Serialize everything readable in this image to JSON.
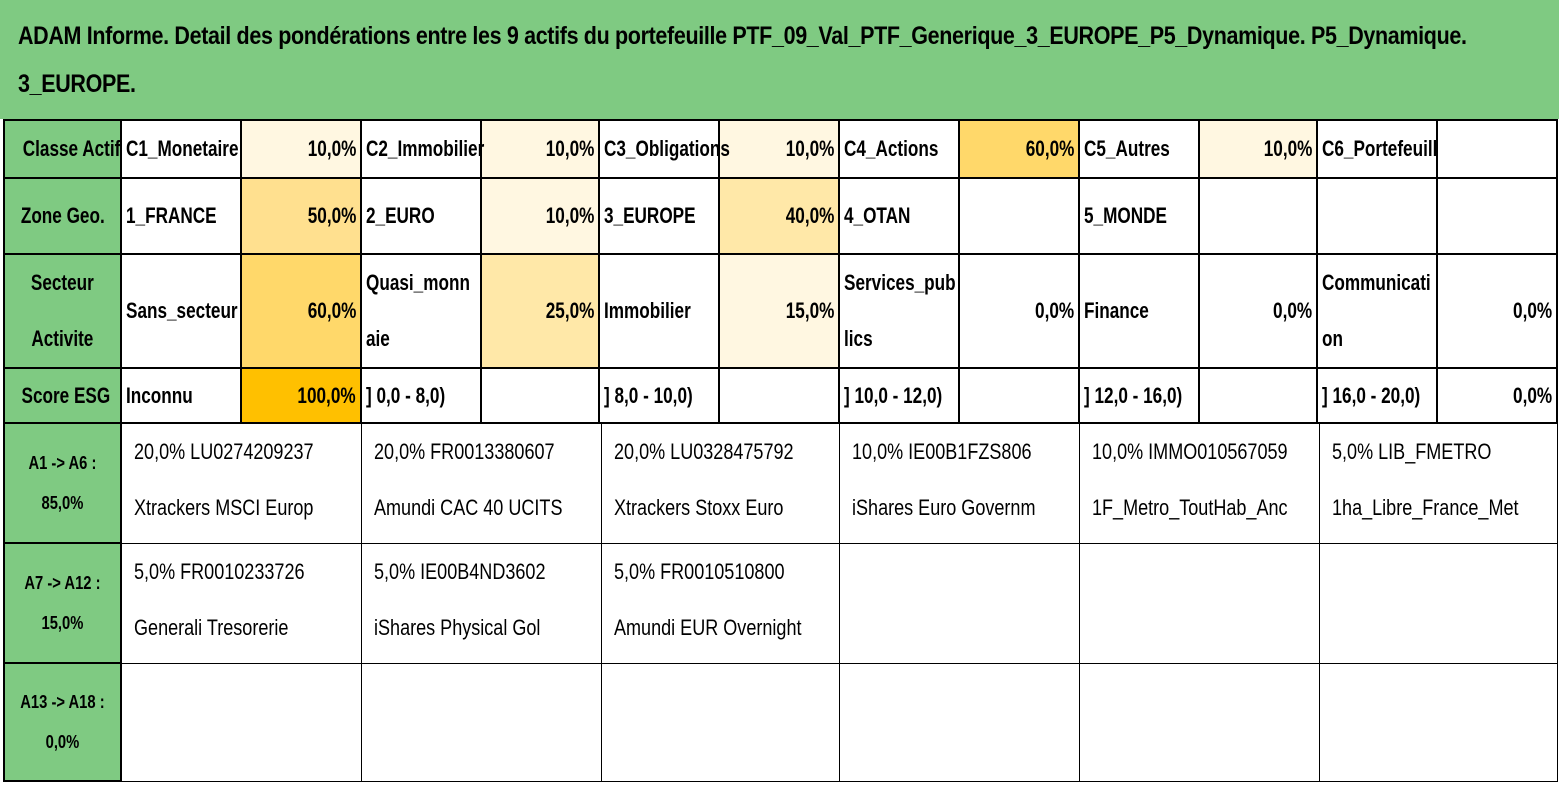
{
  "title": {
    "line1": "ADAM Informe. Detail des pondérations entre les 9 actifs du portefeuille PTF_09_Val_PTF_Generique_3_EUROPE_P5_Dynamique. P5_Dynamique.",
    "line2": "3_EUROPE."
  },
  "rows": {
    "classe": {
      "label": "Classe Actif",
      "cells": [
        {
          "name": "C1_Monetaire",
          "pct": "10,0%"
        },
        {
          "name": "C2_Immobilier",
          "pct": "10,0%"
        },
        {
          "name": "C3_Obligations",
          "pct": "10,0%"
        },
        {
          "name": "C4_Actions",
          "pct": "60,0%"
        },
        {
          "name": "C5_Autres",
          "pct": "10,0%"
        },
        {
          "name": "C6_Portefeuill",
          "pct": ""
        }
      ]
    },
    "zone": {
      "label": "Zone Geo.",
      "cells": [
        {
          "name": "1_FRANCE",
          "pct": "50,0%"
        },
        {
          "name": "2_EURO",
          "pct": "10,0%"
        },
        {
          "name": "3_EUROPE",
          "pct": "40,0%"
        },
        {
          "name": "4_OTAN",
          "pct": ""
        },
        {
          "name": "5_MONDE",
          "pct": ""
        },
        {
          "name": "",
          "pct": ""
        }
      ]
    },
    "secteur": {
      "label_line1": "Secteur",
      "label_line2": "Activite",
      "cells": [
        {
          "name": "Sans_secteur",
          "pct": "60,0%"
        },
        {
          "name": "Quasi_monn aie",
          "pct": "25,0%"
        },
        {
          "name": "Immobilier",
          "pct": "15,0%"
        },
        {
          "name": "Services_pub lics",
          "pct": "0,0%"
        },
        {
          "name": "Finance",
          "pct": "0,0%"
        },
        {
          "name": "Communicati on",
          "pct": "0,0%"
        }
      ]
    },
    "esg": {
      "label": "Score ESG",
      "cells": [
        {
          "name": "Inconnu",
          "pct": "100,0%"
        },
        {
          "name": "] 0,0 - 8,0)",
          "pct": ""
        },
        {
          "name": "] 8,0 - 10,0)",
          "pct": ""
        },
        {
          "name": "] 10,0 - 12,0)",
          "pct": ""
        },
        {
          "name": "] 12,0 - 16,0)",
          "pct": ""
        },
        {
          "name": "] 16,0 - 20,0)",
          "pct": "0,0%"
        }
      ]
    }
  },
  "assets": [
    {
      "label_line1": "A1 -> A6 :",
      "label_line2": "85,0%",
      "items": [
        {
          "line1": "20,0% LU0274209237",
          "line2": "Xtrackers MSCI Europ"
        },
        {
          "line1": "20,0% FR0013380607",
          "line2": "Amundi CAC 40 UCITS"
        },
        {
          "line1": "20,0% LU0328475792",
          "line2": "Xtrackers Stoxx Euro"
        },
        {
          "line1": "10,0% IE00B1FZS806",
          "line2": "iShares Euro Governm"
        },
        {
          "line1": "10,0% IMMO010567059",
          "line2": "1F_Metro_ToutHab_Anc"
        },
        {
          "line1": "5,0% LIB_FMETRO",
          "line2": "1ha_Libre_France_Met"
        }
      ]
    },
    {
      "label_line1": "A7 -> A12 :",
      "label_line2": "15,0%",
      "items": [
        {
          "line1": "5,0% FR0010233726",
          "line2": "Generali Tresorerie"
        },
        {
          "line1": "5,0% IE00B4ND3602",
          "line2": "iShares Physical Gol"
        },
        {
          "line1": "5,0% FR0010510800",
          "line2": "Amundi EUR Overnight"
        },
        {
          "line1": "",
          "line2": ""
        },
        {
          "line1": "",
          "line2": ""
        },
        {
          "line1": "",
          "line2": ""
        }
      ]
    },
    {
      "label_line1": "A13 -> A18 :",
      "label_line2": "0,0%",
      "items": [
        {
          "line1": "",
          "line2": ""
        },
        {
          "line1": "",
          "line2": ""
        },
        {
          "line1": "",
          "line2": ""
        },
        {
          "line1": "",
          "line2": ""
        },
        {
          "line1": "",
          "line2": ""
        },
        {
          "line1": "",
          "line2": ""
        }
      ]
    }
  ],
  "colors": {
    "header_green": "#7fca82",
    "weight_light": "#fff7e1",
    "weight_mid": "#ffe8a8",
    "weight_50": "#ffe08f",
    "weight_60": "#ffd86a",
    "weight_100": "#ffc000"
  }
}
